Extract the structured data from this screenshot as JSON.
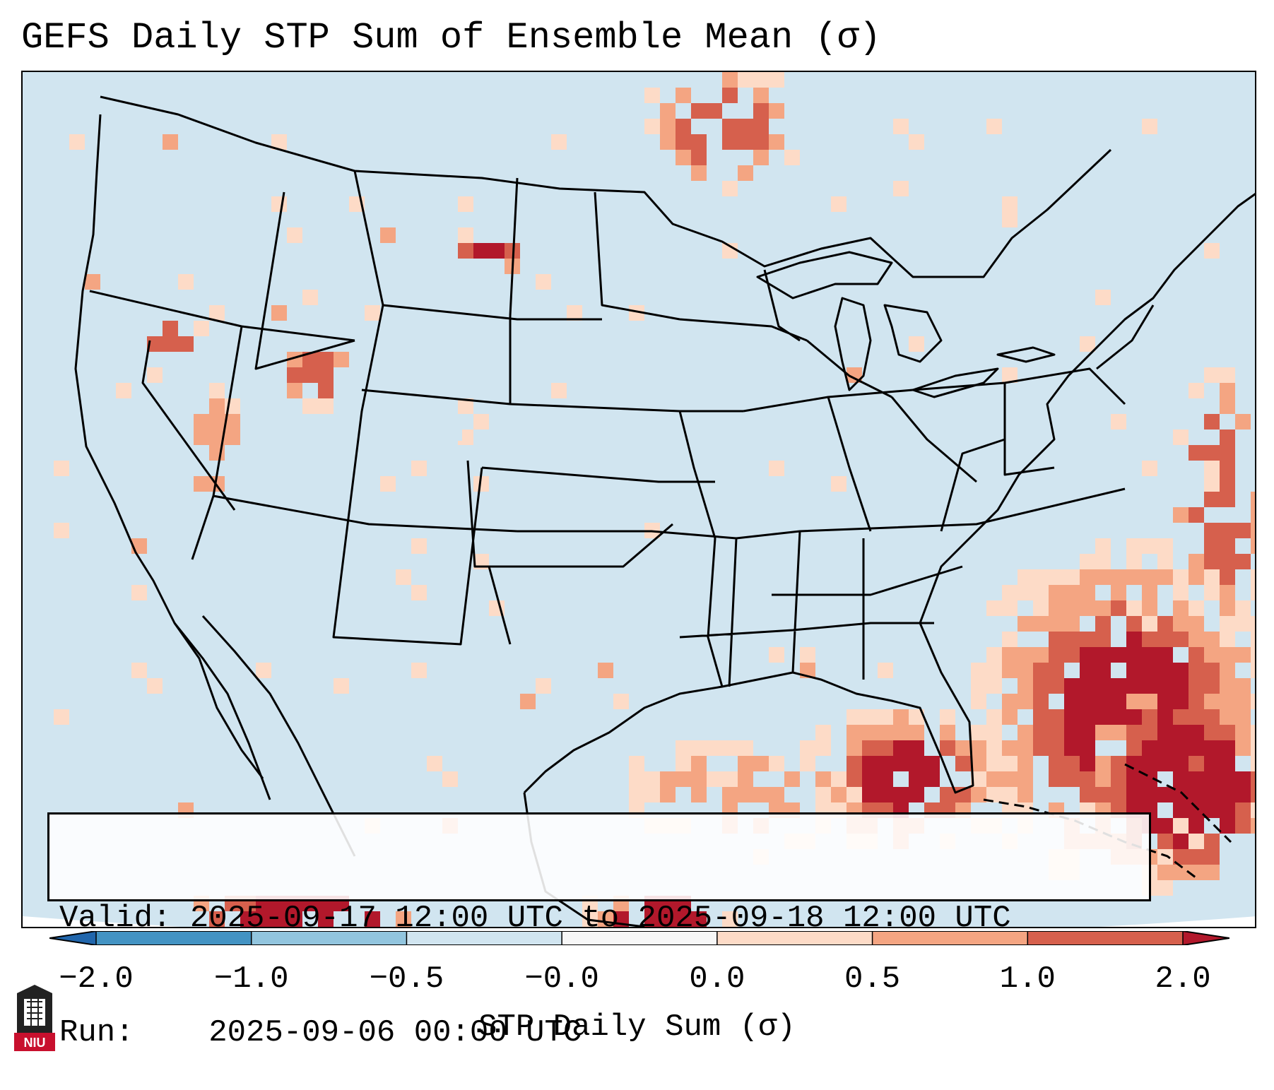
{
  "title": "GEFS Daily STP Sum of Ensemble Mean (σ)",
  "info": {
    "valid_label": "Valid:",
    "valid_value": "2025-09-17 12:00 UTC to 2025-09-18 12:00 UTC",
    "run_label": "Run:",
    "run_value": "2025-09-06 00:00 UTC"
  },
  "colorbar": {
    "label": "STP Daily Sum (σ)",
    "ticks": [
      "−2.0",
      "−1.0",
      "−0.5",
      "−0.0",
      "0.0",
      "0.5",
      "1.0",
      "2.0"
    ],
    "colors": [
      "#2166ac",
      "#4393c3",
      "#92c5de",
      "#d1e5f0",
      "#f7f7f7",
      "#fddbc7",
      "#f4a582",
      "#d6604d",
      "#b2182b"
    ]
  },
  "map": {
    "background_color": "#d1e5f0",
    "region": "Continental United States, southern Canada, northern Mexico, Gulf of Mexico, Caribbean"
  },
  "logo": {
    "text": "NIU"
  }
}
